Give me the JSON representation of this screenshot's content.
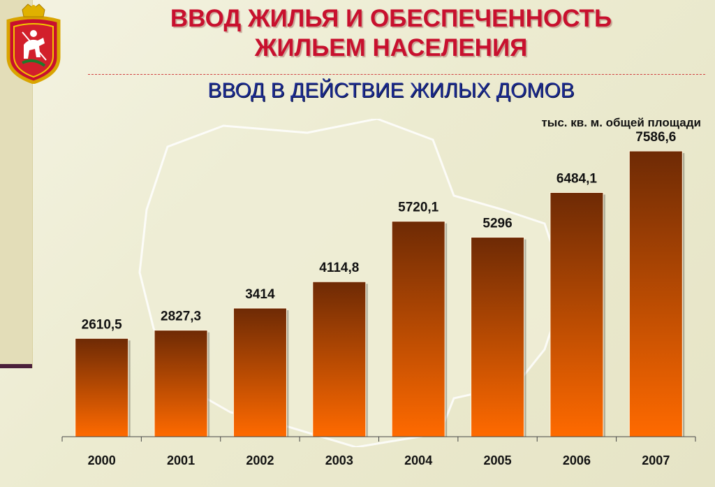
{
  "header": {
    "title_line1": "ВВОД ЖИЛЬЯ И ОБЕСПЕЧЕННОСТЬ",
    "title_line2": "ЖИЛЬЕМ НАСЕЛЕНИЯ",
    "subtitle": "ВВОД В ДЕЙСТВИЕ ЖИЛЫХ ДОМОВ"
  },
  "colors": {
    "title": "#c8102e",
    "subtitle": "#1b2a8f",
    "bar_top": "#6e2a05",
    "bar_bottom": "#ff6a00"
  },
  "chart_data": {
    "type": "bar",
    "unit_label": "тыс. кв. м. общей площади",
    "categories": [
      "2000",
      "2001",
      "2002",
      "2003",
      "2004",
      "2005",
      "2006",
      "2007"
    ],
    "values": [
      2610.5,
      2827.3,
      3414,
      4114.8,
      5720.1,
      5296,
      6484.1,
      7586.6
    ],
    "value_labels": [
      "2610,5",
      "2827,3",
      "3414",
      "4114,8",
      "5720,1",
      "5296",
      "6484,1",
      "7586,6"
    ],
    "ylim": [
      0,
      8850
    ],
    "grid": false,
    "legend": "none"
  }
}
